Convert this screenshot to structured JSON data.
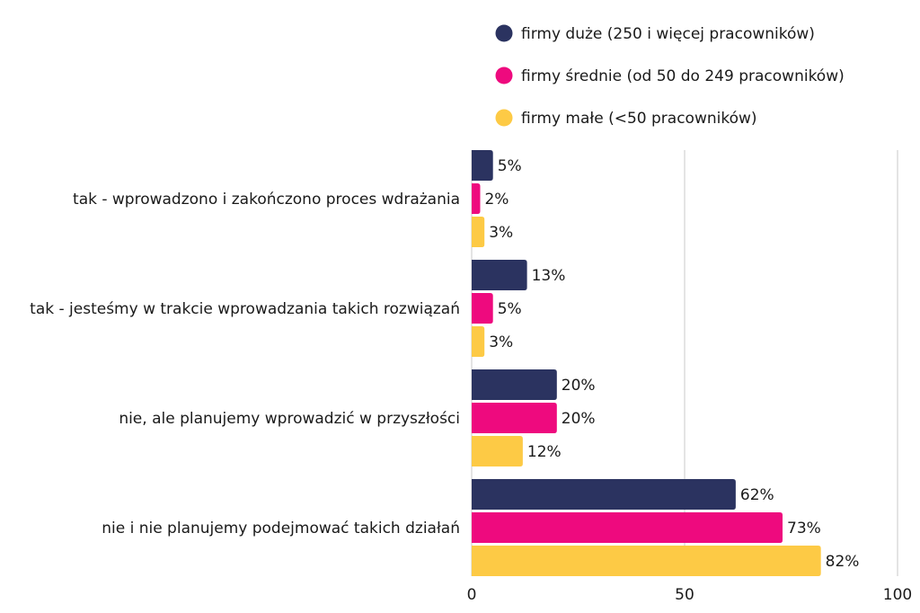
{
  "chart_data": {
    "type": "bar",
    "orientation": "horizontal",
    "title": "",
    "xlabel": "",
    "ylabel": "",
    "xlim": [
      0,
      100
    ],
    "xticks": [
      0,
      50,
      100
    ],
    "grid": true,
    "legend_position": "top",
    "value_suffix": "%",
    "categories": [
      "tak - wprowadzono i zakończono proces wdrażania",
      "tak - jesteśmy w trakcie wprowadzania takich rozwiązań",
      "nie, ale planujemy wprowadzić w przyszłości",
      "nie i nie planujemy podejmować takich działań"
    ],
    "series": [
      {
        "name": "firmy duże (250 i więcej pracowników)",
        "color": "#2b3360",
        "values": [
          5,
          13,
          20,
          62
        ]
      },
      {
        "name": "firmy średnie (od 50 do 249 pracowników)",
        "color": "#ee0a7e",
        "values": [
          2,
          5,
          20,
          73
        ]
      },
      {
        "name": "firmy małe (<50 pracowników)",
        "color": "#fdca45",
        "values": [
          3,
          3,
          12,
          82
        ]
      }
    ]
  }
}
